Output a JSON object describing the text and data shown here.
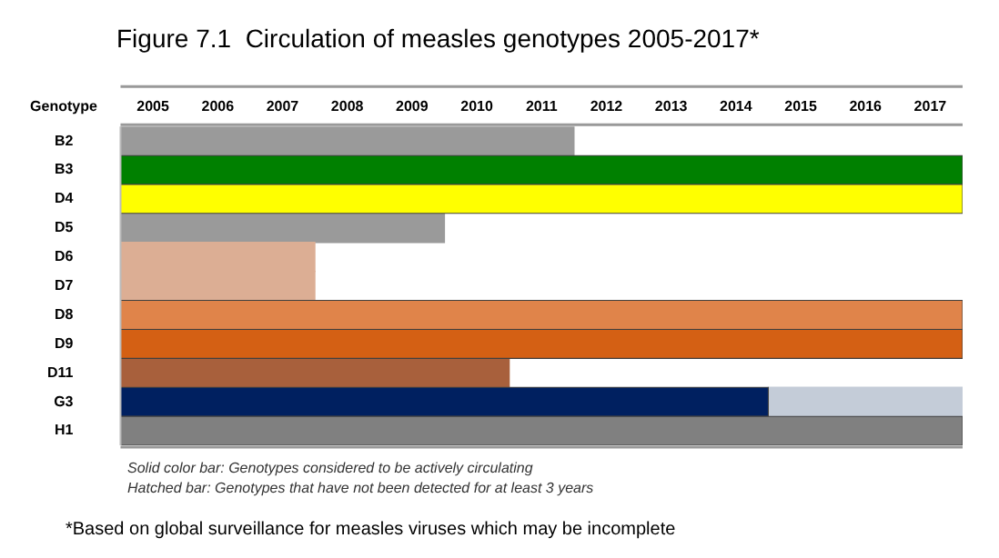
{
  "chart_data": {
    "type": "bar",
    "orientation": "horizontal",
    "title": "Figure 7.1  Circulation of measles genotypes 2005-2017*",
    "ylabel": "Genotype",
    "categories": [
      "B2",
      "B3",
      "D4",
      "D5",
      "D6",
      "D7",
      "D8",
      "D9",
      "D11",
      "G3",
      "H1"
    ],
    "series": [
      {
        "colors": [
          "#ffffff",
          "#008000",
          "#ffff00",
          "#ffffff",
          "#ffffff",
          "#ffffff",
          "#e0844a",
          "#d46014",
          "#ffffff",
          "#002060",
          "#808080"
        ],
        "values": [
          null,
          13,
          13,
          null,
          null,
          null,
          13,
          13,
          null,
          10,
          13
        ],
        "base": [
          null,
          2004.5,
          2004.5,
          null,
          null,
          null,
          2004.5,
          2004.5,
          null,
          2004.5,
          2004.5
        ]
      },
      {
        "colors": [
          "#9a9a9a",
          "#000000",
          "#000000",
          "#9a9a9a",
          "#dcae94",
          "#dcae94",
          "#000000",
          "#000000",
          "#a8603c",
          "#c4ccd8",
          "#000000"
        ],
        "values": [
          7,
          null,
          null,
          5,
          3,
          3,
          null,
          null,
          6,
          3,
          null
        ],
        "base": [
          2004.5,
          null,
          null,
          2004.5,
          2004.5,
          2004.5,
          null,
          null,
          2004.5,
          2014.5,
          null
        ]
      }
    ],
    "xlim": [
      2004.5,
      2017.5
    ],
    "xticks": [
      2005,
      2006,
      2007,
      2008,
      2009,
      2010,
      2011,
      2012,
      2013,
      2014,
      2015,
      2016,
      2017
    ],
    "grid": false,
    "legend": false,
    "annotations": [
      "Solid color bar: Genotypes considered to be actively circulating",
      "Hatched bar: Genotypes that have not been detected for at least 3 years",
      "*Based on global surveillance for measles viruses which may be incomplete"
    ]
  }
}
